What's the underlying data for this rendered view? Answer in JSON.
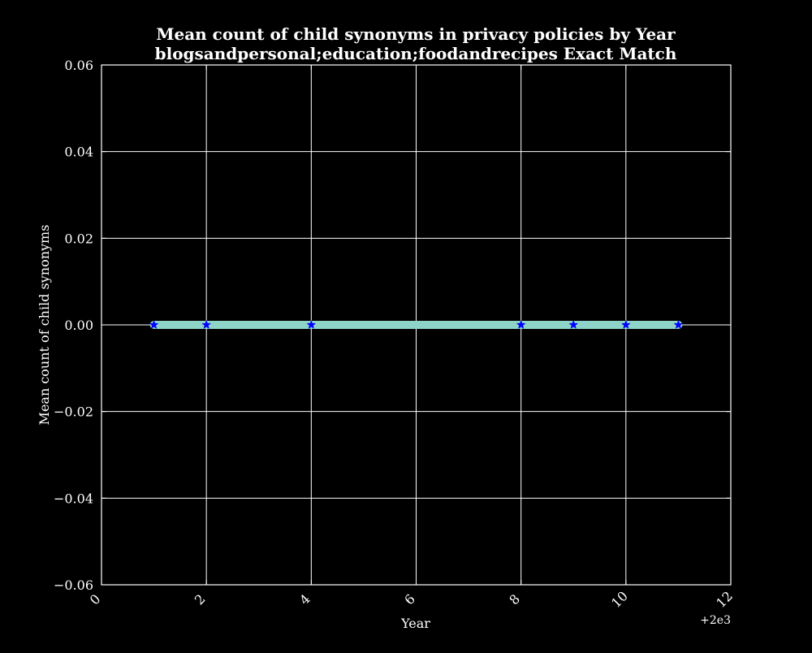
{
  "chart_data": {
    "type": "line",
    "title": "Mean count of child synonyms in privacy policies by Year",
    "subtitle": "blogsandpersonal;education;foodandrecipes Exact Match",
    "xlabel": "Year",
    "ylabel": "Mean count of child synonyms",
    "x_offset_label": "+2e3",
    "x_offset": 2000,
    "xlim": [
      2000,
      2012
    ],
    "ylim": [
      -0.06,
      0.06
    ],
    "x_ticks": [
      2000,
      2002,
      2004,
      2006,
      2008,
      2010,
      2012
    ],
    "x_tick_labels": [
      "0",
      "2",
      "4",
      "6",
      "8",
      "10",
      "12"
    ],
    "y_ticks": [
      -0.06,
      -0.04,
      -0.02,
      0.0,
      0.02,
      0.04,
      0.06
    ],
    "y_tick_labels": [
      "−0.06",
      "−0.04",
      "−0.02",
      "0.00",
      "0.02",
      "0.04",
      "0.06"
    ],
    "grid": true,
    "series": [
      {
        "x": [
          2001,
          2002,
          2004,
          2008,
          2009,
          2010,
          2011
        ],
        "y": [
          0,
          0,
          0,
          0,
          0,
          0,
          0
        ],
        "line_color": "#8dd3c7",
        "marker": "star",
        "marker_color": "#0000ff"
      }
    ],
    "colors": {
      "background": "#000000",
      "axes": "#ffffff",
      "grid": "#ffffff",
      "text": "#ffffff"
    }
  }
}
